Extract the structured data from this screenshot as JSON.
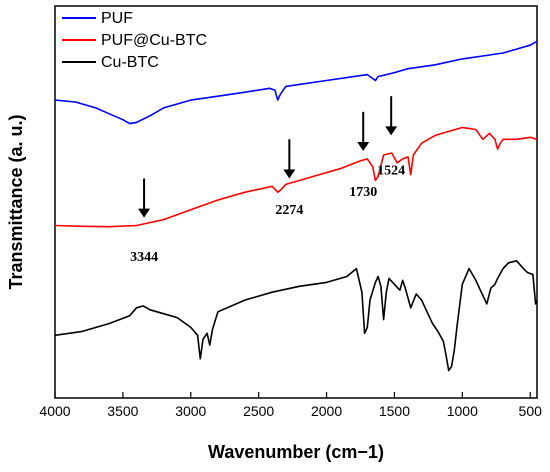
{
  "chart_data": {
    "type": "line",
    "xlabel": "Wavenumber (cm−1)",
    "ylabel": "Transmittance (a. u.)",
    "xlim": [
      4000,
      450
    ],
    "x_reversed": true,
    "ylim": [
      0,
      100
    ],
    "y_tick_labels": "none",
    "x_ticks": [
      4000,
      3500,
      3000,
      2500,
      2000,
      1500,
      1000,
      500
    ],
    "x_tick_labels": [
      "4000",
      "3500",
      "3000",
      "2500",
      "2000",
      "1500",
      "1000",
      "500"
    ],
    "grid": false,
    "legend_position": "top-left",
    "series": [
      {
        "name": "PUF",
        "color": "#0000ff",
        "points": [
          [
            4000,
            76
          ],
          [
            3850,
            75.5
          ],
          [
            3700,
            74
          ],
          [
            3600,
            72.5
          ],
          [
            3500,
            71
          ],
          [
            3450,
            70
          ],
          [
            3400,
            70.3
          ],
          [
            3300,
            72
          ],
          [
            3200,
            74
          ],
          [
            3000,
            76
          ],
          [
            2800,
            77
          ],
          [
            2600,
            78
          ],
          [
            2420,
            79
          ],
          [
            2380,
            78.5
          ],
          [
            2360,
            76
          ],
          [
            2340,
            77.5
          ],
          [
            2300,
            79.5
          ],
          [
            2200,
            80
          ],
          [
            2000,
            81
          ],
          [
            1800,
            82
          ],
          [
            1700,
            82.5
          ],
          [
            1640,
            81
          ],
          [
            1620,
            82
          ],
          [
            1500,
            83
          ],
          [
            1400,
            84
          ],
          [
            1200,
            85
          ],
          [
            1000,
            86.5
          ],
          [
            800,
            87.5
          ],
          [
            700,
            88
          ],
          [
            600,
            89
          ],
          [
            500,
            90
          ],
          [
            450,
            91
          ]
        ]
      },
      {
        "name": "PUF@Cu-BTC",
        "color": "#ff0000",
        "points": [
          [
            4000,
            44
          ],
          [
            3800,
            43.8
          ],
          [
            3600,
            43.7
          ],
          [
            3400,
            44
          ],
          [
            3200,
            45.5
          ],
          [
            3000,
            48
          ],
          [
            2800,
            50.5
          ],
          [
            2600,
            52.5
          ],
          [
            2400,
            54
          ],
          [
            2360,
            52.5
          ],
          [
            2340,
            53
          ],
          [
            2300,
            54.5
          ],
          [
            2100,
            56.5
          ],
          [
            1900,
            58.5
          ],
          [
            1750,
            60.5
          ],
          [
            1700,
            61
          ],
          [
            1660,
            59
          ],
          [
            1640,
            55.5
          ],
          [
            1620,
            56.5
          ],
          [
            1580,
            62
          ],
          [
            1520,
            62.5
          ],
          [
            1480,
            60
          ],
          [
            1440,
            61
          ],
          [
            1400,
            61.5
          ],
          [
            1380,
            57
          ],
          [
            1360,
            62
          ],
          [
            1300,
            65
          ],
          [
            1200,
            67
          ],
          [
            1100,
            68
          ],
          [
            1000,
            69
          ],
          [
            900,
            68.5
          ],
          [
            850,
            66
          ],
          [
            800,
            67.5
          ],
          [
            760,
            66
          ],
          [
            740,
            63.5
          ],
          [
            720,
            65
          ],
          [
            700,
            66
          ],
          [
            600,
            66
          ],
          [
            500,
            66.5
          ],
          [
            450,
            66
          ]
        ]
      },
      {
        "name": "Cu-BTC",
        "color": "#000000",
        "points": [
          [
            4000,
            16
          ],
          [
            3800,
            17
          ],
          [
            3600,
            19
          ],
          [
            3450,
            21
          ],
          [
            3400,
            23
          ],
          [
            3350,
            23.5
          ],
          [
            3300,
            22.5
          ],
          [
            3200,
            21.5
          ],
          [
            3100,
            20.5
          ],
          [
            3000,
            18
          ],
          [
            2950,
            16
          ],
          [
            2930,
            10
          ],
          [
            2910,
            15
          ],
          [
            2880,
            16.5
          ],
          [
            2860,
            13.5
          ],
          [
            2840,
            17.5
          ],
          [
            2800,
            22
          ],
          [
            2600,
            25
          ],
          [
            2400,
            27
          ],
          [
            2200,
            28.5
          ],
          [
            2000,
            29.5
          ],
          [
            1850,
            31
          ],
          [
            1780,
            33
          ],
          [
            1740,
            27
          ],
          [
            1720,
            16.5
          ],
          [
            1700,
            18
          ],
          [
            1680,
            25
          ],
          [
            1640,
            29.5
          ],
          [
            1620,
            31
          ],
          [
            1600,
            28.5
          ],
          [
            1580,
            20
          ],
          [
            1560,
            27
          ],
          [
            1540,
            30.5
          ],
          [
            1500,
            29
          ],
          [
            1460,
            27.5
          ],
          [
            1440,
            30
          ],
          [
            1420,
            28
          ],
          [
            1400,
            25.5
          ],
          [
            1380,
            23
          ],
          [
            1340,
            26.5
          ],
          [
            1300,
            25
          ],
          [
            1260,
            22
          ],
          [
            1220,
            19
          ],
          [
            1180,
            17
          ],
          [
            1140,
            14.5
          ],
          [
            1120,
            11
          ],
          [
            1100,
            7
          ],
          [
            1080,
            8
          ],
          [
            1060,
            12
          ],
          [
            1040,
            18
          ],
          [
            1000,
            29
          ],
          [
            950,
            33
          ],
          [
            900,
            30
          ],
          [
            860,
            27
          ],
          [
            820,
            24
          ],
          [
            790,
            28
          ],
          [
            760,
            29
          ],
          [
            740,
            30.5
          ],
          [
            700,
            33
          ],
          [
            660,
            34.5
          ],
          [
            600,
            35
          ],
          [
            550,
            33
          ],
          [
            520,
            32
          ],
          [
            480,
            31.5
          ],
          [
            460,
            24
          ],
          [
            450,
            25
          ]
        ]
      }
    ],
    "annotations": [
      {
        "label": "3344",
        "x": 3344,
        "arrow_tip_y": 46,
        "arrow_tail_y": 56,
        "label_y": 35
      },
      {
        "label": "2274",
        "x": 2274,
        "arrow_tip_y": 56,
        "arrow_tail_y": 66,
        "label_y": 47
      },
      {
        "label": "1730",
        "x": 1730,
        "arrow_tip_y": 63,
        "arrow_tail_y": 73,
        "label_y": 51.5
      },
      {
        "label": "1524",
        "x": 1524,
        "arrow_tip_y": 67,
        "arrow_tail_y": 77,
        "label_y": 57
      }
    ]
  }
}
